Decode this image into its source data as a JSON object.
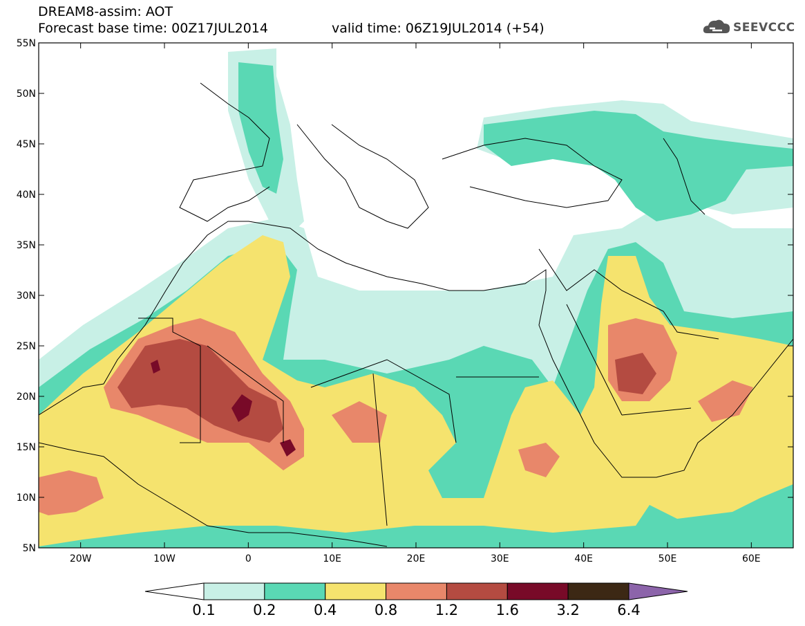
{
  "header": {
    "line1": "DREAM8-assim: AOT",
    "line2": "Forecast base time: 00Z17JUL2014",
    "line3": "valid time: 06Z19JUL2014 (+54)",
    "logo_text": "SEEVCCC"
  },
  "map": {
    "lat_labels": [
      "55N",
      "50N",
      "45N",
      "40N",
      "35N",
      "30N",
      "25N",
      "20N",
      "15N",
      "10N",
      "5N"
    ],
    "lon_labels": [
      "20W",
      "10W",
      "0",
      "10E",
      "20E",
      "30E",
      "40E",
      "50E",
      "60E"
    ],
    "extent": {
      "lon_min": -25,
      "lon_max": 65,
      "lat_min": 5,
      "lat_max": 55
    }
  },
  "colorbar": {
    "labels": [
      "0.1",
      "0.2",
      "0.4",
      "0.8",
      "1.2",
      "1.6",
      "3.2",
      "6.4"
    ],
    "colors": [
      "#ffffff",
      "#c8f0e6",
      "#5ad8b4",
      "#f5e36e",
      "#e8876a",
      "#b44b41",
      "#780a28",
      "#3c2814",
      "#8c64aa"
    ]
  }
}
